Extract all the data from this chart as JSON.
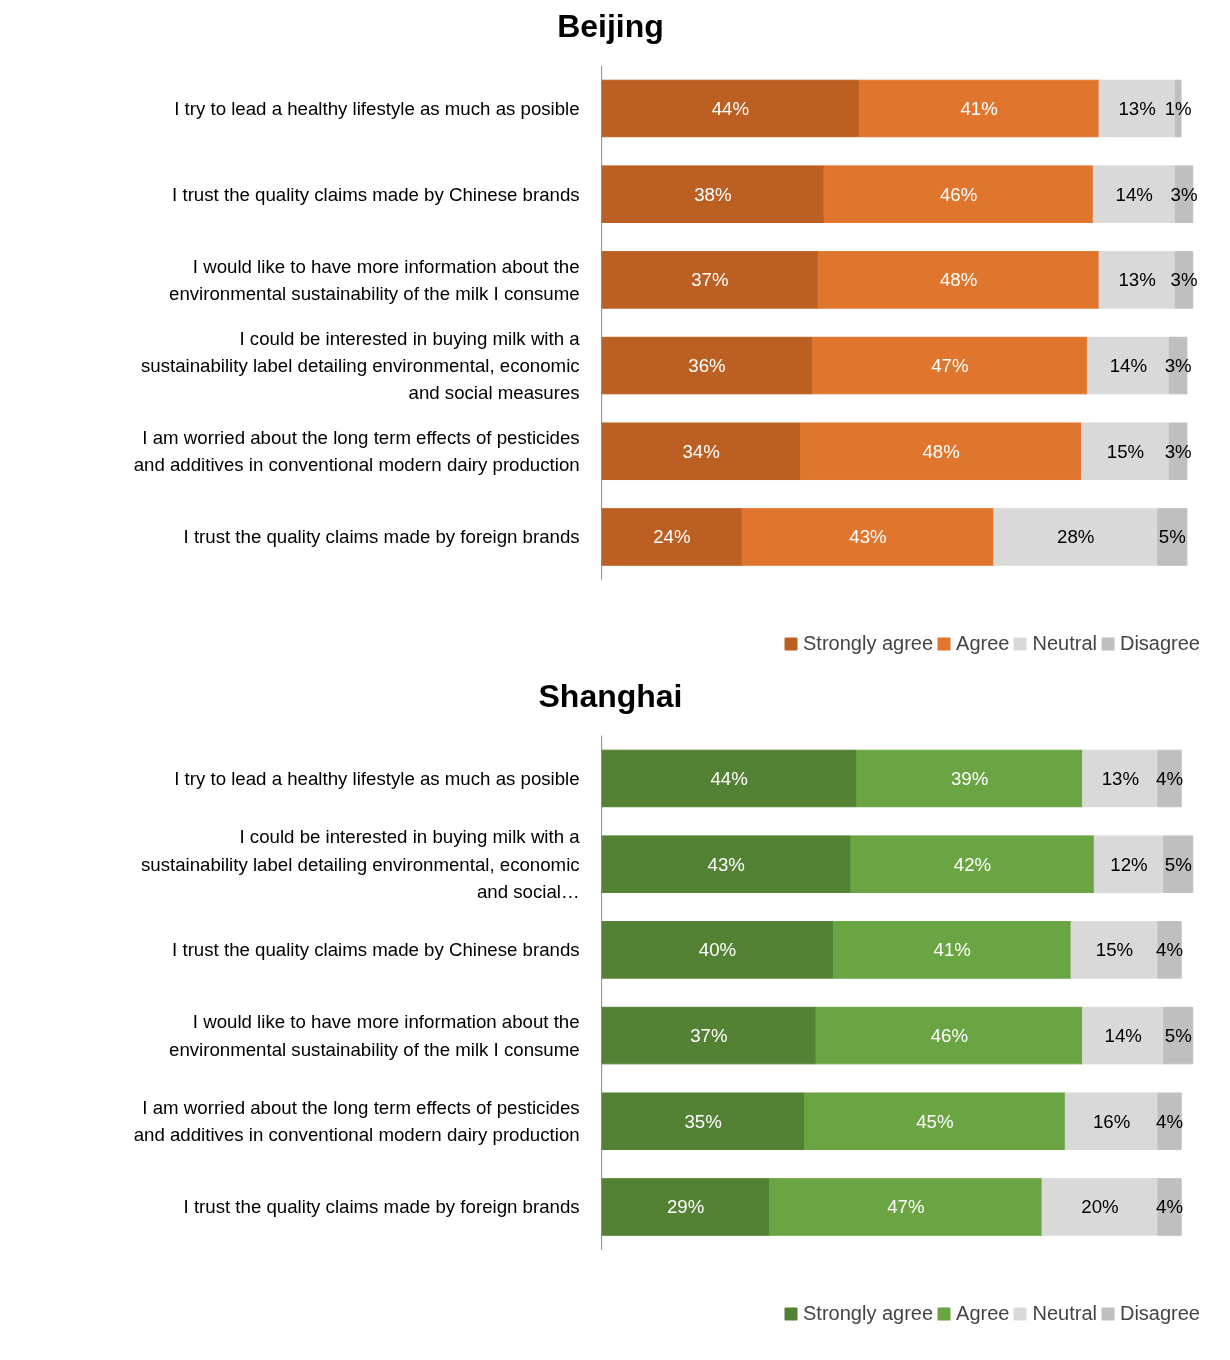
{
  "chart_data": [
    {
      "type": "bar",
      "title": "Beijing",
      "orientation": "horizontal",
      "stacked": true,
      "legend": "bottom right",
      "categories": [
        "I try to lead a healthy lifestyle as much as posible",
        "I trust the quality claims made by Chinese brands",
        "I would like to have more information about the environmental sustainability of the milk I consume",
        "I could be interested in buying milk with a sustainability label detailing environmental, economic and social measures",
        "I am worried about the long term effects of pesticides and additives in conventional modern dairy production",
        "I trust the quality claims made by foreign brands"
      ],
      "series": [
        {
          "name": "Strongly agree",
          "color": "#bc5f22",
          "values": [
            44,
            38,
            37,
            36,
            34,
            24
          ],
          "value_labels": [
            "44%",
            "38%",
            "37%",
            "36%",
            "34%",
            "24%"
          ]
        },
        {
          "name": "Agree",
          "color": "#e0762d",
          "values": [
            41,
            46,
            48,
            47,
            48,
            43
          ],
          "value_labels": [
            "41%",
            "46%",
            "48%",
            "47%",
            "48%",
            "43%"
          ]
        },
        {
          "name": "Neutral",
          "color": "#d9d9d9",
          "values": [
            13,
            14,
            13,
            14,
            15,
            28
          ],
          "value_labels": [
            "13%",
            "14%",
            "13%",
            "14%",
            "15%",
            "28%"
          ]
        },
        {
          "name": "Disagree",
          "color": "#bfbfbf",
          "values": [
            1,
            3,
            3,
            3,
            3,
            5
          ],
          "value_labels": [
            "1%",
            "3%",
            "3%",
            "3%",
            "3%",
            "5%"
          ]
        }
      ]
    },
    {
      "type": "bar",
      "title": "Shanghai",
      "orientation": "horizontal",
      "stacked": true,
      "legend": "bottom right",
      "categories": [
        "I try to lead a healthy lifestyle as much as posible",
        "I could be interested in buying milk with a sustainability label detailing environmental, economic and social…",
        "I trust the quality claims made by Chinese brands",
        "I would like to have more information about the environmental sustainability of the milk I consume",
        "I am worried about the long term effects of pesticides and additives in conventional modern dairy production",
        "I trust the quality claims made by foreign brands"
      ],
      "series": [
        {
          "name": "Strongly agree",
          "color": "#548235",
          "values": [
            44,
            43,
            40,
            37,
            35,
            29
          ],
          "value_labels": [
            "44%",
            "43%",
            "40%",
            "37%",
            "35%",
            "29%"
          ]
        },
        {
          "name": "Agree",
          "color": "#6aa443",
          "values": [
            39,
            42,
            41,
            46,
            45,
            47
          ],
          "value_labels": [
            "39%",
            "42%",
            "41%",
            "46%",
            "45%",
            "47%"
          ]
        },
        {
          "name": "Neutral",
          "color": "#d9d9d9",
          "values": [
            13,
            12,
            15,
            14,
            16,
            20
          ],
          "value_labels": [
            "13%",
            "12%",
            "15%",
            "14%",
            "16%",
            "20%"
          ]
        },
        {
          "name": "Disagree",
          "color": "#bfbfbf",
          "values": [
            4,
            5,
            4,
            5,
            4,
            4
          ],
          "value_labels": [
            "4%",
            "5%",
            "4%",
            "5%",
            "4%",
            "4%"
          ]
        }
      ]
    }
  ]
}
